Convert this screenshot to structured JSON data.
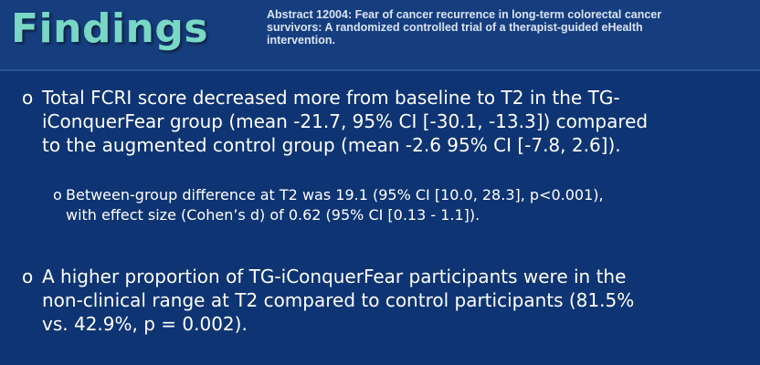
{
  "slide": {
    "title": "Findings",
    "abstract_title": "Abstract 12004: Fear of cancer recurrence in long-term colorectal cancer survivors: A randomized controlled trial of a therapist-guided eHealth intervention.",
    "bullet_marker": "o",
    "bullets": [
      {
        "lines": [
          "Total FCRI score decreased more from baseline to T2 in the TG-",
          "iConquerFear group (mean -21.7, 95% CI [-30.1, -13.3]) compared",
          "to the augmented control group (mean -2.6 95% CI [-7.8, 2.6])."
        ],
        "sub_bullets": [
          {
            "lines": [
              "Between-group difference at T2 was 19.1 (95% CI [10.0, 28.3], p<0.001),",
              "with effect size (Cohen’s d) of 0.62 (95% CI [0.13 - 1.1])."
            ]
          }
        ]
      },
      {
        "lines": [
          "A higher proportion of TG-iConquerFear participants were in the",
          "non-clinical range at T2 compared to control participants (81.5%",
          "vs. 42.9%, p = 0.002)."
        ]
      }
    ]
  },
  "colors": {
    "background": "#0e3473",
    "header_band": "#163e7f",
    "title": "#79d7c5",
    "text": "#ffffff"
  }
}
